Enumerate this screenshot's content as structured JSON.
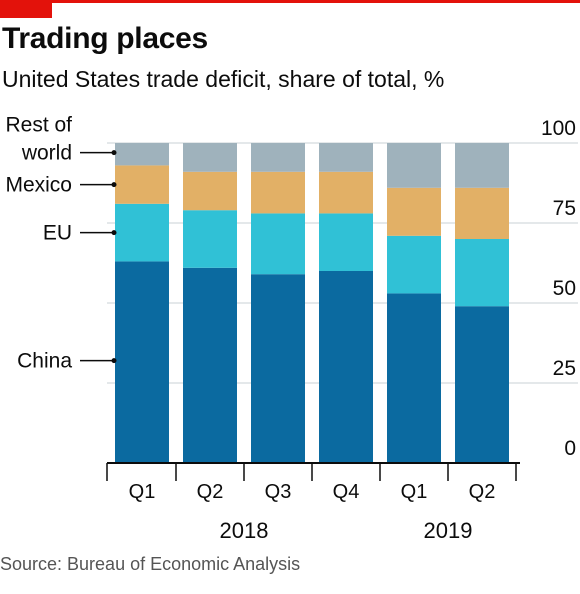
{
  "title": "Trading places",
  "subtitle": "United States trade deficit, share of total, %",
  "source": "Source: Bureau of Economic Analysis",
  "colors": {
    "accent": "#e3120b",
    "China": "#0b6aa0",
    "EU": "#30c1d6",
    "Mexico": "#e2b066",
    "Rest of world": "#9fb2bc",
    "grid": "#c8d0d4",
    "axis": "#0c0c0c"
  },
  "chart_data": {
    "type": "bar",
    "stacked": true,
    "categories": [
      "Q1",
      "Q2",
      "Q3",
      "Q4",
      "Q1",
      "Q2"
    ],
    "year_groups": [
      {
        "label": "2018",
        "start": 0,
        "end": 3
      },
      {
        "label": "2019",
        "start": 4,
        "end": 5
      }
    ],
    "series": [
      {
        "name": "China",
        "values": [
          63,
          61,
          59,
          60,
          53,
          49
        ]
      },
      {
        "name": "EU",
        "values": [
          18,
          18,
          19,
          18,
          18,
          21
        ]
      },
      {
        "name": "Mexico",
        "values": [
          12,
          12,
          13,
          13,
          15,
          16
        ]
      },
      {
        "name": "Rest of world",
        "values": [
          7,
          9,
          9,
          9,
          14,
          14
        ]
      }
    ],
    "ylim": [
      0,
      100
    ],
    "yticks": [
      0,
      25,
      50,
      75,
      100
    ],
    "ytick_labels": [
      "0",
      "25",
      "50",
      "75",
      "100"
    ],
    "label_heights": {
      "Rest of world": 97,
      "Mexico": 87,
      "EU": 72,
      "China": 32
    },
    "grid": true,
    "legend_placement": "left, inline with bars",
    "yaxis_side": "right"
  }
}
